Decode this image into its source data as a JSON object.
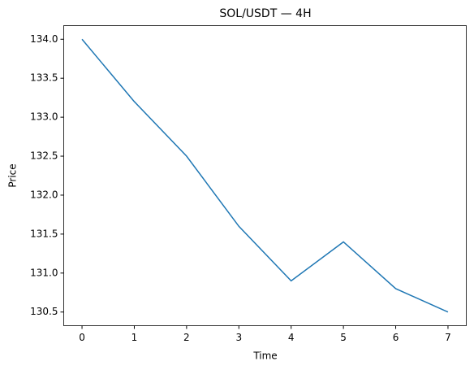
{
  "chart_data": {
    "type": "line",
    "title": "SOL/USDT — 4H",
    "xlabel": "Time",
    "ylabel": "Price",
    "x": [
      0,
      1,
      2,
      3,
      4,
      5,
      6,
      7
    ],
    "series": [
      {
        "color": "#1f77b4",
        "values": [
          134.0,
          133.2,
          132.5,
          131.6,
          130.9,
          131.4,
          130.8,
          130.5
        ]
      }
    ],
    "xlim": [
      -0.35,
      7.35
    ],
    "xticks": [
      0,
      1,
      2,
      3,
      4,
      5,
      6,
      7
    ],
    "ylim": [
      130.325,
      134.175
    ],
    "yticks": [
      130.5,
      {
        "value": 131.0,
        "label": "131.0"
      },
      131.5,
      {
        "value": 132.0,
        "label": "132.0"
      },
      132.5,
      {
        "value": 133.0,
        "label": "133.0"
      },
      133.5,
      {
        "value": 134.0,
        "label": "134.0"
      }
    ],
    "grid": false
  }
}
